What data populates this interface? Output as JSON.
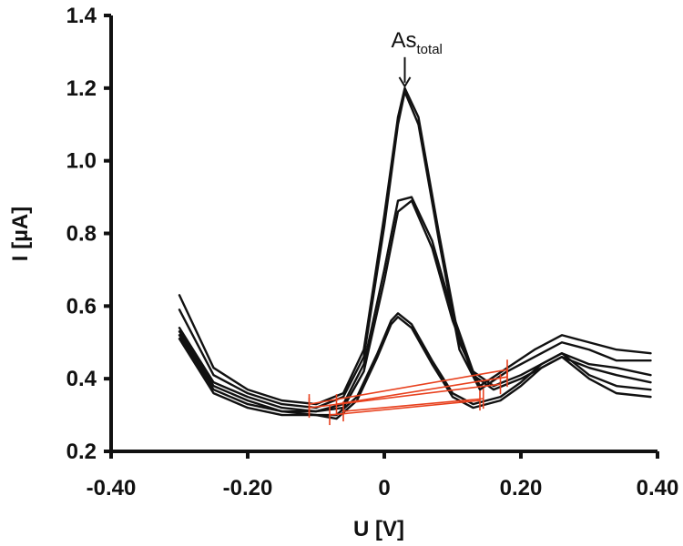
{
  "chart_data": {
    "type": "line",
    "xlabel": "U [V]",
    "ylabel": "I [µA]",
    "xlim": [
      -0.4,
      0.4
    ],
    "ylim": [
      0.2,
      1.4
    ],
    "xticks": [
      "-0.40",
      "-0.20",
      "0",
      "0.20",
      "0.40"
    ],
    "yticks": [
      "0.2",
      "0.4",
      "0.6",
      "0.8",
      "1.0",
      "1.2",
      "1.4"
    ],
    "annotation": {
      "text": "As",
      "subscript": "total",
      "x": 0.03,
      "y": 1.2
    },
    "series": [
      {
        "x": [
          -0.3,
          -0.25,
          -0.2,
          -0.15,
          -0.1,
          -0.06,
          -0.03,
          0.0,
          0.02,
          0.03,
          0.05,
          0.08,
          0.11,
          0.14,
          0.18,
          0.22,
          0.26,
          0.3,
          0.34,
          0.39
        ],
        "y": [
          0.63,
          0.43,
          0.37,
          0.34,
          0.33,
          0.36,
          0.48,
          0.85,
          1.12,
          1.2,
          1.12,
          0.8,
          0.5,
          0.38,
          0.43,
          0.48,
          0.52,
          0.5,
          0.48,
          0.47
        ]
      },
      {
        "x": [
          -0.3,
          -0.25,
          -0.2,
          -0.15,
          -0.1,
          -0.06,
          -0.03,
          0.0,
          0.02,
          0.03,
          0.05,
          0.08,
          0.11,
          0.14,
          0.18,
          0.22,
          0.26,
          0.3,
          0.34,
          0.39
        ],
        "y": [
          0.59,
          0.41,
          0.36,
          0.33,
          0.32,
          0.35,
          0.46,
          0.82,
          1.1,
          1.19,
          1.1,
          0.78,
          0.48,
          0.37,
          0.42,
          0.46,
          0.5,
          0.48,
          0.45,
          0.45
        ]
      },
      {
        "x": [
          -0.3,
          -0.25,
          -0.2,
          -0.15,
          -0.1,
          -0.06,
          -0.03,
          0.0,
          0.02,
          0.04,
          0.07,
          0.1,
          0.13,
          0.16,
          0.2,
          0.23,
          0.26,
          0.3,
          0.34,
          0.39
        ],
        "y": [
          0.54,
          0.39,
          0.35,
          0.32,
          0.31,
          0.33,
          0.44,
          0.7,
          0.89,
          0.9,
          0.78,
          0.58,
          0.42,
          0.38,
          0.41,
          0.44,
          0.47,
          0.44,
          0.43,
          0.41
        ]
      },
      {
        "x": [
          -0.3,
          -0.25,
          -0.2,
          -0.15,
          -0.1,
          -0.06,
          -0.03,
          0.0,
          0.02,
          0.04,
          0.07,
          0.1,
          0.13,
          0.16,
          0.2,
          0.23,
          0.26,
          0.3,
          0.34,
          0.39
        ],
        "y": [
          0.53,
          0.38,
          0.34,
          0.31,
          0.31,
          0.32,
          0.42,
          0.67,
          0.86,
          0.89,
          0.76,
          0.56,
          0.41,
          0.37,
          0.4,
          0.43,
          0.46,
          0.43,
          0.41,
          0.39
        ]
      },
      {
        "x": [
          -0.3,
          -0.25,
          -0.2,
          -0.15,
          -0.1,
          -0.07,
          -0.04,
          -0.01,
          0.01,
          0.02,
          0.04,
          0.07,
          0.1,
          0.13,
          0.17,
          0.2,
          0.23,
          0.26,
          0.3,
          0.34,
          0.39
        ],
        "y": [
          0.52,
          0.37,
          0.33,
          0.31,
          0.3,
          0.3,
          0.35,
          0.47,
          0.56,
          0.58,
          0.55,
          0.45,
          0.36,
          0.33,
          0.35,
          0.39,
          0.44,
          0.47,
          0.41,
          0.38,
          0.37
        ]
      },
      {
        "x": [
          -0.3,
          -0.25,
          -0.2,
          -0.15,
          -0.1,
          -0.07,
          -0.04,
          -0.01,
          0.01,
          0.02,
          0.04,
          0.07,
          0.1,
          0.13,
          0.17,
          0.2,
          0.23,
          0.26,
          0.3,
          0.34,
          0.39
        ],
        "y": [
          0.51,
          0.36,
          0.32,
          0.3,
          0.3,
          0.29,
          0.34,
          0.46,
          0.55,
          0.57,
          0.54,
          0.44,
          0.35,
          0.32,
          0.34,
          0.38,
          0.43,
          0.46,
          0.4,
          0.36,
          0.35
        ]
      }
    ],
    "baselines": {
      "color": "#e8411e",
      "segments": [
        {
          "x1": -0.11,
          "y1": 0.33,
          "x2": 0.18,
          "y2": 0.425
        },
        {
          "x1": -0.07,
          "y1": 0.33,
          "x2": 0.18,
          "y2": 0.405
        },
        {
          "x1": -0.11,
          "y1": 0.32,
          "x2": 0.17,
          "y2": 0.385
        },
        {
          "x1": -0.06,
          "y1": 0.31,
          "x2": 0.145,
          "y2": 0.345
        },
        {
          "x1": -0.08,
          "y1": 0.3,
          "x2": 0.14,
          "y2": 0.34
        }
      ]
    }
  }
}
